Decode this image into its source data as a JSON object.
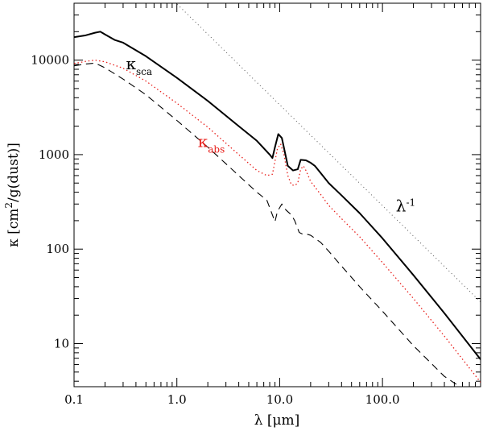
{
  "chart_data": {
    "type": "line",
    "x_scale": "log",
    "y_scale": "log",
    "xlim": [
      0.1,
      900
    ],
    "ylim": [
      3.5,
      40000
    ],
    "grid": false,
    "legend": "none",
    "xlabel": "λ [μm]",
    "ylabel": {
      "main": "κ [cm",
      "sup": "2",
      "rest": "/g(dust)]"
    },
    "x_ticks": [
      {
        "value": 0.1,
        "label": "0.1"
      },
      {
        "value": 1,
        "label": "1.0"
      },
      {
        "value": 10,
        "label": "10.0"
      },
      {
        "value": 100,
        "label": "100.0"
      }
    ],
    "y_ticks": [
      {
        "value": 10,
        "label": "10"
      },
      {
        "value": 100,
        "label": "100"
      },
      {
        "value": 1000,
        "label": "1000"
      },
      {
        "value": 10000,
        "label": "10000"
      }
    ],
    "series": [
      {
        "style": "solid",
        "color": "#000000",
        "width": 2,
        "x": [
          0.1,
          0.13,
          0.16,
          0.18,
          0.2,
          0.25,
          0.3,
          0.5,
          1,
          2,
          4,
          6,
          8,
          8.5,
          9,
          9.7,
          10.5,
          12,
          13.5,
          15,
          16,
          18,
          20,
          22,
          25,
          30,
          40,
          60,
          100,
          200,
          400,
          900
        ],
        "y": [
          17500,
          18300,
          19500,
          20000,
          18700,
          16300,
          15300,
          11000,
          6500,
          3700,
          2000,
          1400,
          1000,
          920,
          1200,
          1650,
          1500,
          760,
          680,
          700,
          880,
          870,
          820,
          760,
          640,
          500,
          370,
          240,
          130,
          53,
          21,
          6.8
        ]
      },
      {
        "style": "dotted",
        "color": "#e8201c",
        "width": 1.3,
        "x": [
          0.1,
          0.13,
          0.16,
          0.2,
          0.3,
          0.5,
          1,
          2,
          4,
          6,
          7.5,
          8.5,
          9.5,
          10.2,
          11,
          12,
          13,
          14,
          15,
          16,
          17,
          18,
          20,
          25,
          30,
          40,
          60,
          100,
          200,
          400,
          900
        ],
        "y": [
          9200,
          9700,
          10000,
          9600,
          8200,
          6000,
          3500,
          1950,
          1000,
          680,
          600,
          620,
          1150,
          1300,
          1000,
          600,
          480,
          470,
          500,
          700,
          760,
          680,
          520,
          380,
          290,
          210,
          135,
          72,
          30,
          12,
          3.9
        ]
      },
      {
        "style": "dashed",
        "color": "#000000",
        "width": 1.1,
        "x": [
          0.1,
          0.13,
          0.16,
          0.2,
          0.3,
          0.5,
          1,
          2,
          4,
          6,
          7.5,
          8.5,
          9.0,
          9.5,
          10.5,
          11.5,
          13,
          14,
          15.5,
          16.5,
          18,
          20,
          25,
          30,
          40,
          60,
          100,
          200,
          400,
          900
        ],
        "y": [
          8700,
          9100,
          9300,
          8300,
          6300,
          4300,
          2300,
          1200,
          600,
          400,
          330,
          230,
          195,
          250,
          300,
          260,
          230,
          200,
          150,
          145,
          145,
          140,
          118,
          95,
          66,
          40,
          22,
          9.5,
          4.5,
          2.5
        ]
      },
      {
        "style": "dotted-thin",
        "color": "#555555",
        "width": 1,
        "x": [
          0.8,
          900
        ],
        "y": [
          50000,
          27.6
        ]
      }
    ],
    "annotations": [
      {
        "id": "kappa-sca",
        "text": "κ",
        "sub": "sca",
        "color": "#000000",
        "x": 0.32,
        "y": 8000
      },
      {
        "id": "kappa-abs",
        "text": "κ",
        "sub": "abs",
        "color": "#e8201c",
        "x": 1.6,
        "y": 1200
      },
      {
        "id": "lambda-inv",
        "text": "λ",
        "sup": "-1",
        "color": "#000000",
        "x": 135,
        "y": 250
      }
    ]
  }
}
